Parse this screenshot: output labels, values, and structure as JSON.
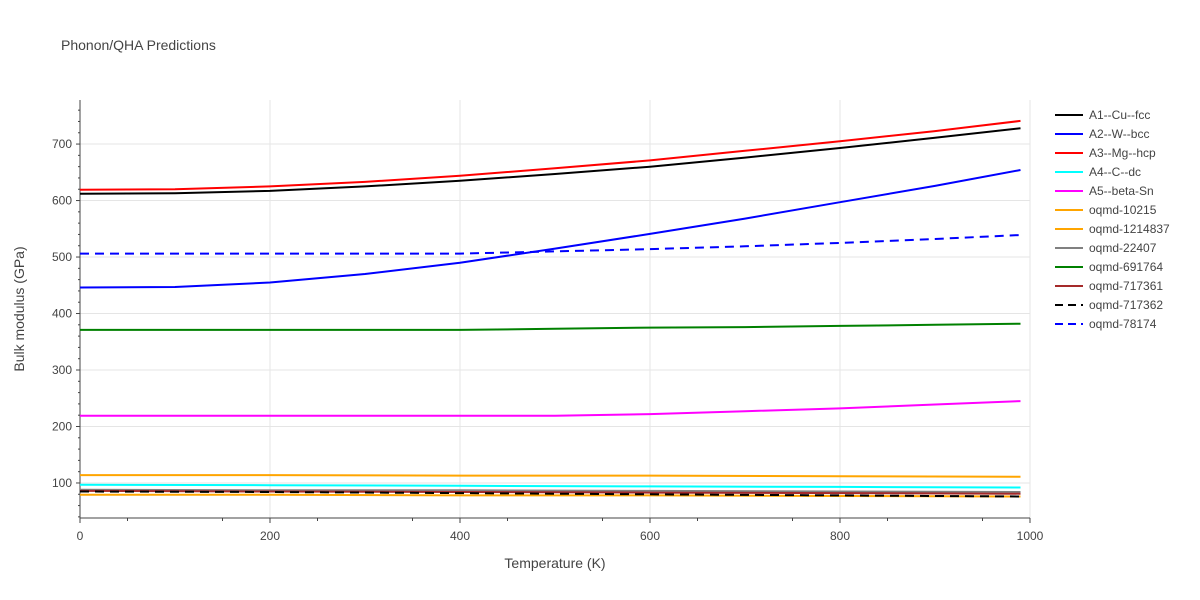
{
  "chart_data": {
    "type": "line",
    "title": "Phonon/QHA Predictions",
    "xlabel": "Temperature (K)",
    "ylabel": "Bulk modulus (GPa)",
    "xlim": [
      0,
      1000
    ],
    "ylim": [
      38,
      778
    ],
    "xticks": [
      0,
      200,
      400,
      600,
      800,
      1000
    ],
    "yticks": [
      100,
      200,
      300,
      400,
      500,
      600,
      700
    ],
    "grid": true,
    "legend_position": "right",
    "series": [
      {
        "name": "A1--Cu--fcc",
        "color": "#000000",
        "dash": "solid",
        "x": [
          0,
          100,
          200,
          300,
          400,
          500,
          600,
          700,
          800,
          900,
          990
        ],
        "y": [
          612,
          613,
          617,
          625,
          635,
          647,
          660,
          676,
          693,
          711,
          728
        ]
      },
      {
        "name": "A2--W--bcc",
        "color": "#0000ff",
        "dash": "solid",
        "x": [
          0,
          100,
          200,
          300,
          400,
          500,
          600,
          700,
          800,
          900,
          990
        ],
        "y": [
          446,
          447,
          455,
          470,
          490,
          515,
          541,
          568,
          597,
          626,
          654
        ]
      },
      {
        "name": "A3--Mg--hcp",
        "color": "#ff0000",
        "dash": "solid",
        "x": [
          0,
          100,
          200,
          300,
          400,
          500,
          600,
          700,
          800,
          900,
          990
        ],
        "y": [
          619,
          620,
          625,
          633,
          644,
          657,
          671,
          688,
          705,
          723,
          741
        ]
      },
      {
        "name": "A4--C--dc",
        "color": "#00ffff",
        "dash": "solid",
        "x": [
          0,
          200,
          400,
          600,
          800,
          990
        ],
        "y": [
          97,
          96,
          95,
          94,
          93,
          92
        ]
      },
      {
        "name": "A5--beta-Sn",
        "color": "#ff00ff",
        "dash": "solid",
        "x": [
          0,
          100,
          200,
          300,
          400,
          500,
          600,
          700,
          800,
          900,
          990
        ],
        "y": [
          219,
          219,
          219,
          219,
          219,
          219,
          222,
          227,
          232,
          239,
          245
        ]
      },
      {
        "name": "oqmd-10215",
        "color": "#ffa500",
        "dash": "solid",
        "x": [
          0,
          200,
          400,
          600,
          800,
          990
        ],
        "y": [
          79,
          79,
          78,
          78,
          77,
          76
        ]
      },
      {
        "name": "oqmd-1214837",
        "color": "#ffa500",
        "dash": "solid",
        "x": [
          0,
          200,
          400,
          600,
          800,
          990
        ],
        "y": [
          114,
          114,
          113,
          113,
          112,
          111
        ]
      },
      {
        "name": "oqmd-22407",
        "color": "#808080",
        "dash": "solid",
        "x": [
          0,
          200,
          400,
          600,
          800,
          990
        ],
        "y": [
          88,
          87,
          87,
          86,
          85,
          84
        ]
      },
      {
        "name": "oqmd-691764",
        "color": "#008000",
        "dash": "solid",
        "x": [
          0,
          100,
          200,
          300,
          400,
          500,
          600,
          700,
          800,
          900,
          990
        ],
        "y": [
          371,
          371,
          371,
          371,
          371,
          373,
          375,
          376,
          378,
          380,
          382
        ]
      },
      {
        "name": "oqmd-717361",
        "color": "#a52a2a",
        "dash": "solid",
        "x": [
          0,
          200,
          400,
          600,
          800,
          990
        ],
        "y": [
          86,
          85,
          84,
          83,
          82,
          81
        ]
      },
      {
        "name": "oqmd-717362",
        "color": "#000000",
        "dash": "dash",
        "x": [
          0,
          200,
          400,
          600,
          800,
          990
        ],
        "y": [
          85,
          84,
          82,
          80,
          78,
          76
        ]
      },
      {
        "name": "oqmd-78174",
        "color": "#0000ff",
        "dash": "dash",
        "x": [
          0,
          100,
          200,
          300,
          400,
          500,
          600,
          700,
          800,
          900,
          990
        ],
        "y": [
          506,
          506,
          506,
          506,
          506,
          510,
          514,
          519,
          525,
          532,
          539
        ]
      }
    ]
  }
}
